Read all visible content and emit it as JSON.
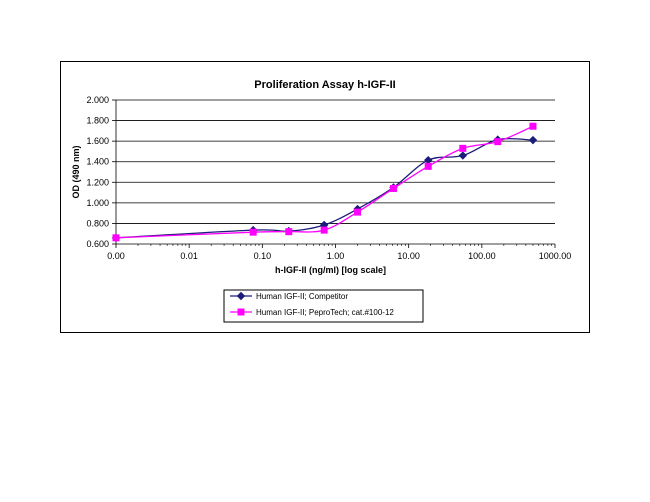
{
  "chart_data": {
    "type": "line",
    "title": "Proliferation Assay h-IGF-II",
    "xlabel": "h-IGF-II (ng/ml) [log scale]",
    "ylabel": "OD (490 nm)",
    "x_scale": "log",
    "xlim": [
      0.001,
      1000
    ],
    "ylim": [
      0.6,
      2.0
    ],
    "x_tick_values": [
      0.001,
      0.01,
      0.1,
      1,
      10,
      100,
      1000
    ],
    "x_tick_labels": [
      "0.00",
      "0.01",
      "0.10",
      "1.00",
      "10.00",
      "100.00",
      "1000.00"
    ],
    "y_tick_values": [
      0.6,
      0.8,
      1.0,
      1.2,
      1.4,
      1.6,
      1.8,
      2.0
    ],
    "y_tick_labels": [
      "0.600",
      "0.800",
      "1.000",
      "1.200",
      "1.400",
      "1.600",
      "1.800",
      "2.000"
    ],
    "grid": "horizontal",
    "legend_position": "bottom",
    "series": [
      {
        "name": "Human IGF-II; Competitor",
        "color": "#1c1c7a",
        "marker": "diamond",
        "x": [
          0.001,
          0.075,
          0.23,
          0.7,
          2.0,
          6.2,
          18.5,
          55,
          165,
          500
        ],
        "y": [
          0.66,
          0.735,
          0.725,
          0.785,
          0.94,
          1.15,
          1.415,
          1.46,
          1.615,
          1.61
        ]
      },
      {
        "name": "Human IGF-II; PeproTech; cat.#100-12",
        "color": "#ff00ff",
        "marker": "square",
        "x": [
          0.001,
          0.075,
          0.23,
          0.7,
          2.0,
          6.2,
          18.5,
          55,
          165,
          500
        ],
        "y": [
          0.66,
          0.715,
          0.72,
          0.735,
          0.91,
          1.14,
          1.355,
          1.53,
          1.595,
          1.745
        ]
      }
    ]
  }
}
